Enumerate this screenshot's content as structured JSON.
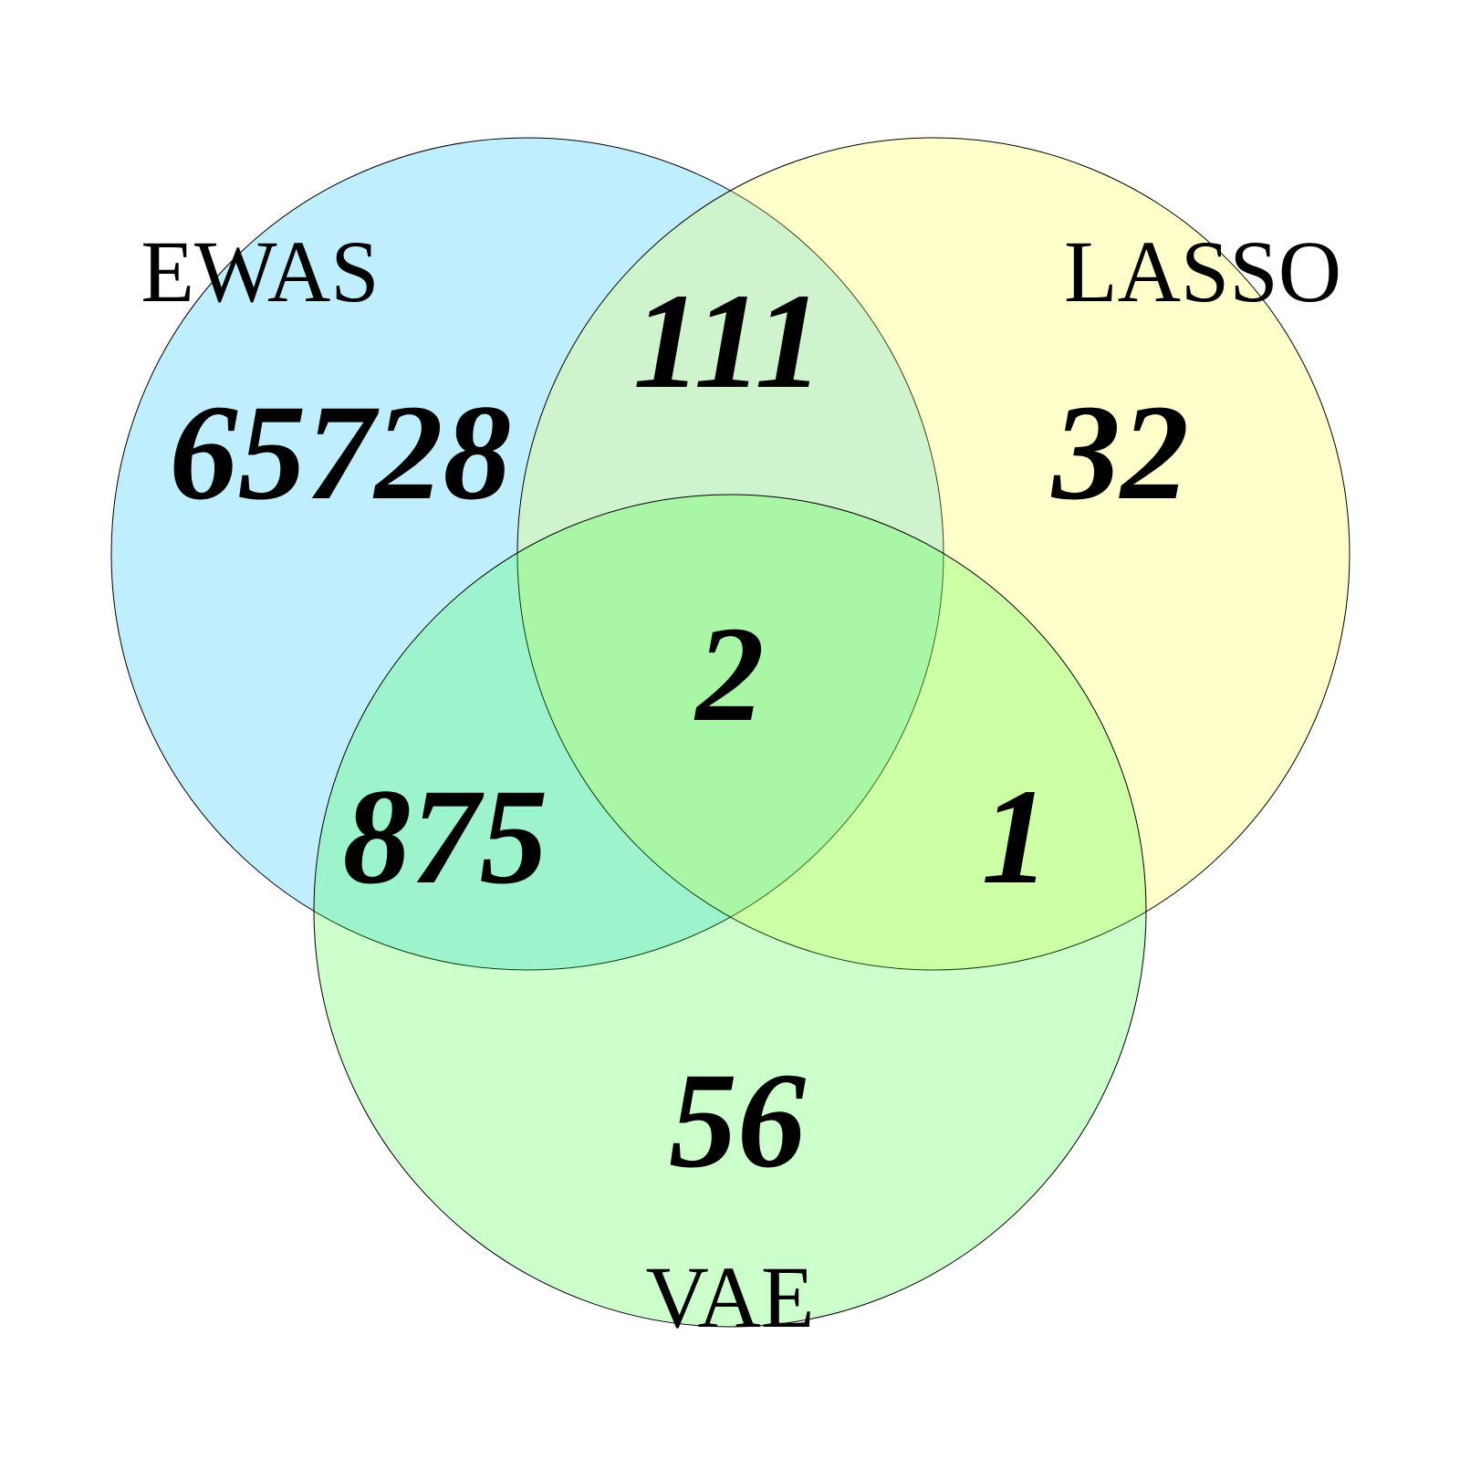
{
  "sets": [
    {
      "key": "ewas",
      "label": "EWAS",
      "color": "#00BFFF"
    },
    {
      "key": "lasso",
      "label": "LASSO",
      "color": "#FFFF33"
    },
    {
      "key": "vae",
      "label": "VAE",
      "color": "#33FF33"
    }
  ],
  "regions": {
    "ewas_only": "65728",
    "lasso_only": "32",
    "vae_only": "56",
    "ewas_lasso": "111",
    "ewas_vae": "875",
    "lasso_vae": "1",
    "all_three": "2"
  }
}
